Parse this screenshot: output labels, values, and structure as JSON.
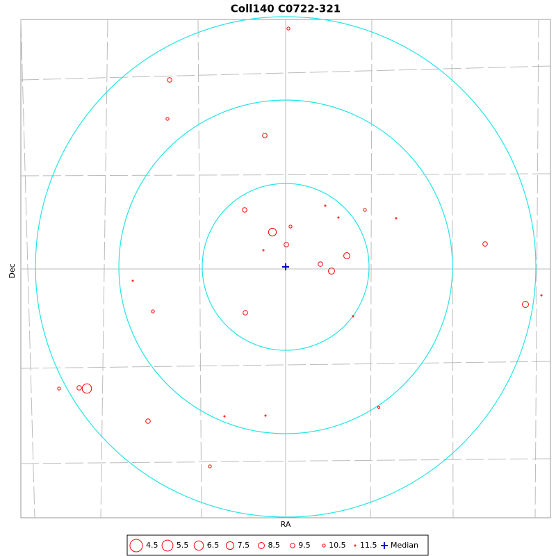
{
  "chart_data": {
    "type": "scatter",
    "title": "Coll140  C0722-321",
    "xlabel": "RA",
    "ylabel": "Dec",
    "x": [
      4,
      -167,
      -170,
      -30,
      -59,
      57,
      114,
      76,
      159,
      7,
      -19,
      1,
      -32,
      287,
      88,
      50,
      66,
      -220,
      368,
      345,
      -191,
      -58,
      97,
      -326,
      -297,
      -286,
      -198,
      -88,
      -29,
      134,
      -109
    ],
    "y": [
      343,
      269,
      213,
      189,
      82,
      88,
      82,
      71,
      70,
      58,
      50,
      32,
      24,
      33,
      16,
      4,
      -6,
      -20,
      -41,
      -54,
      -64,
      -66,
      -71,
      -175,
      -174,
      -175,
      -222,
      -215,
      -214,
      -202,
      -287
    ],
    "sizes": [
      10.5,
      9.5,
      10.5,
      9.5,
      9.5,
      11.5,
      10.5,
      11.5,
      11.5,
      10.5,
      7.5,
      9.5,
      11.5,
      9.5,
      8.5,
      9.5,
      8.5,
      11.5,
      11.5,
      8.5,
      10.5,
      9.5,
      11.5,
      10.5,
      9.5,
      6.5,
      9.5,
      11.5,
      11.5,
      11,
      10.5
    ],
    "color": "#ff0000",
    "xlim": [
      -381,
      381
    ],
    "ylim": [
      -361,
      356
    ],
    "rings": [
      120,
      240,
      360
    ],
    "ring_color": "#22e5e5",
    "size_legend": [
      4.5,
      5.5,
      6.5,
      7.5,
      8.5,
      9.5,
      10.5,
      11.5
    ],
    "median": {
      "x": 0,
      "y": 0,
      "label": "Median",
      "color": "#0000cc"
    }
  }
}
